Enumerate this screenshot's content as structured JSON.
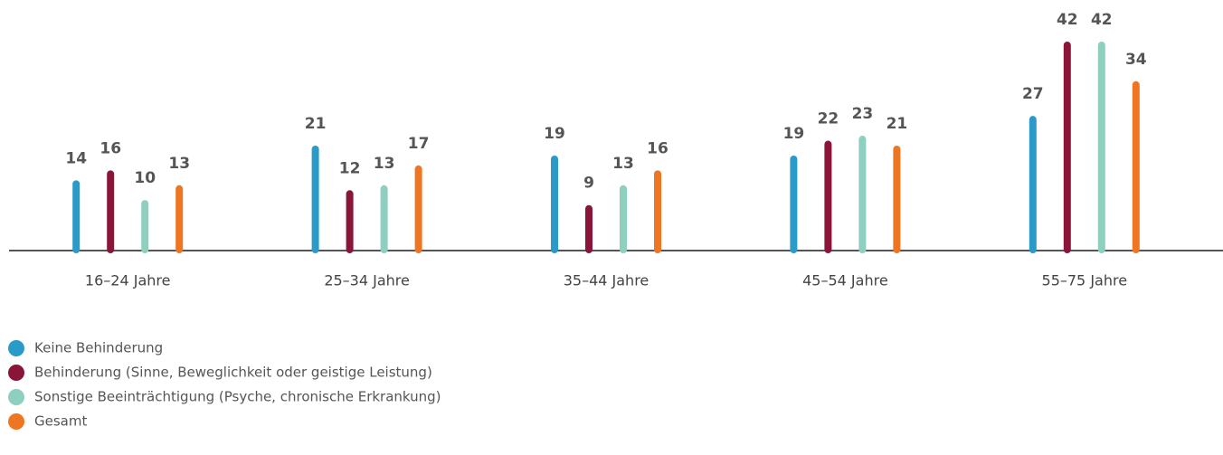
{
  "chart_data": {
    "type": "bar",
    "categories": [
      "16–24 Jahre",
      "25–34 Jahre",
      "35–44 Jahre",
      "45–54 Jahre",
      "55–75 Jahre"
    ],
    "series": [
      {
        "name": "Keine Behinderung",
        "color": "#2a9bc9",
        "values": [
          14,
          21,
          19,
          19,
          27
        ]
      },
      {
        "name": "Behinderung (Sinne, Beweglichkeit oder geistige Leistung)",
        "color": "#8a1538",
        "values": [
          16,
          12,
          9,
          22,
          42
        ]
      },
      {
        "name": "Sonstige Beeinträchtigung (Psyche, chronische Erkrankung)",
        "color": "#8ecfbf",
        "values": [
          10,
          13,
          13,
          23,
          42
        ]
      },
      {
        "name": "Gesamt",
        "color": "#ee7623",
        "values": [
          13,
          17,
          16,
          21,
          34
        ]
      }
    ],
    "ylim": [
      0,
      42
    ]
  }
}
